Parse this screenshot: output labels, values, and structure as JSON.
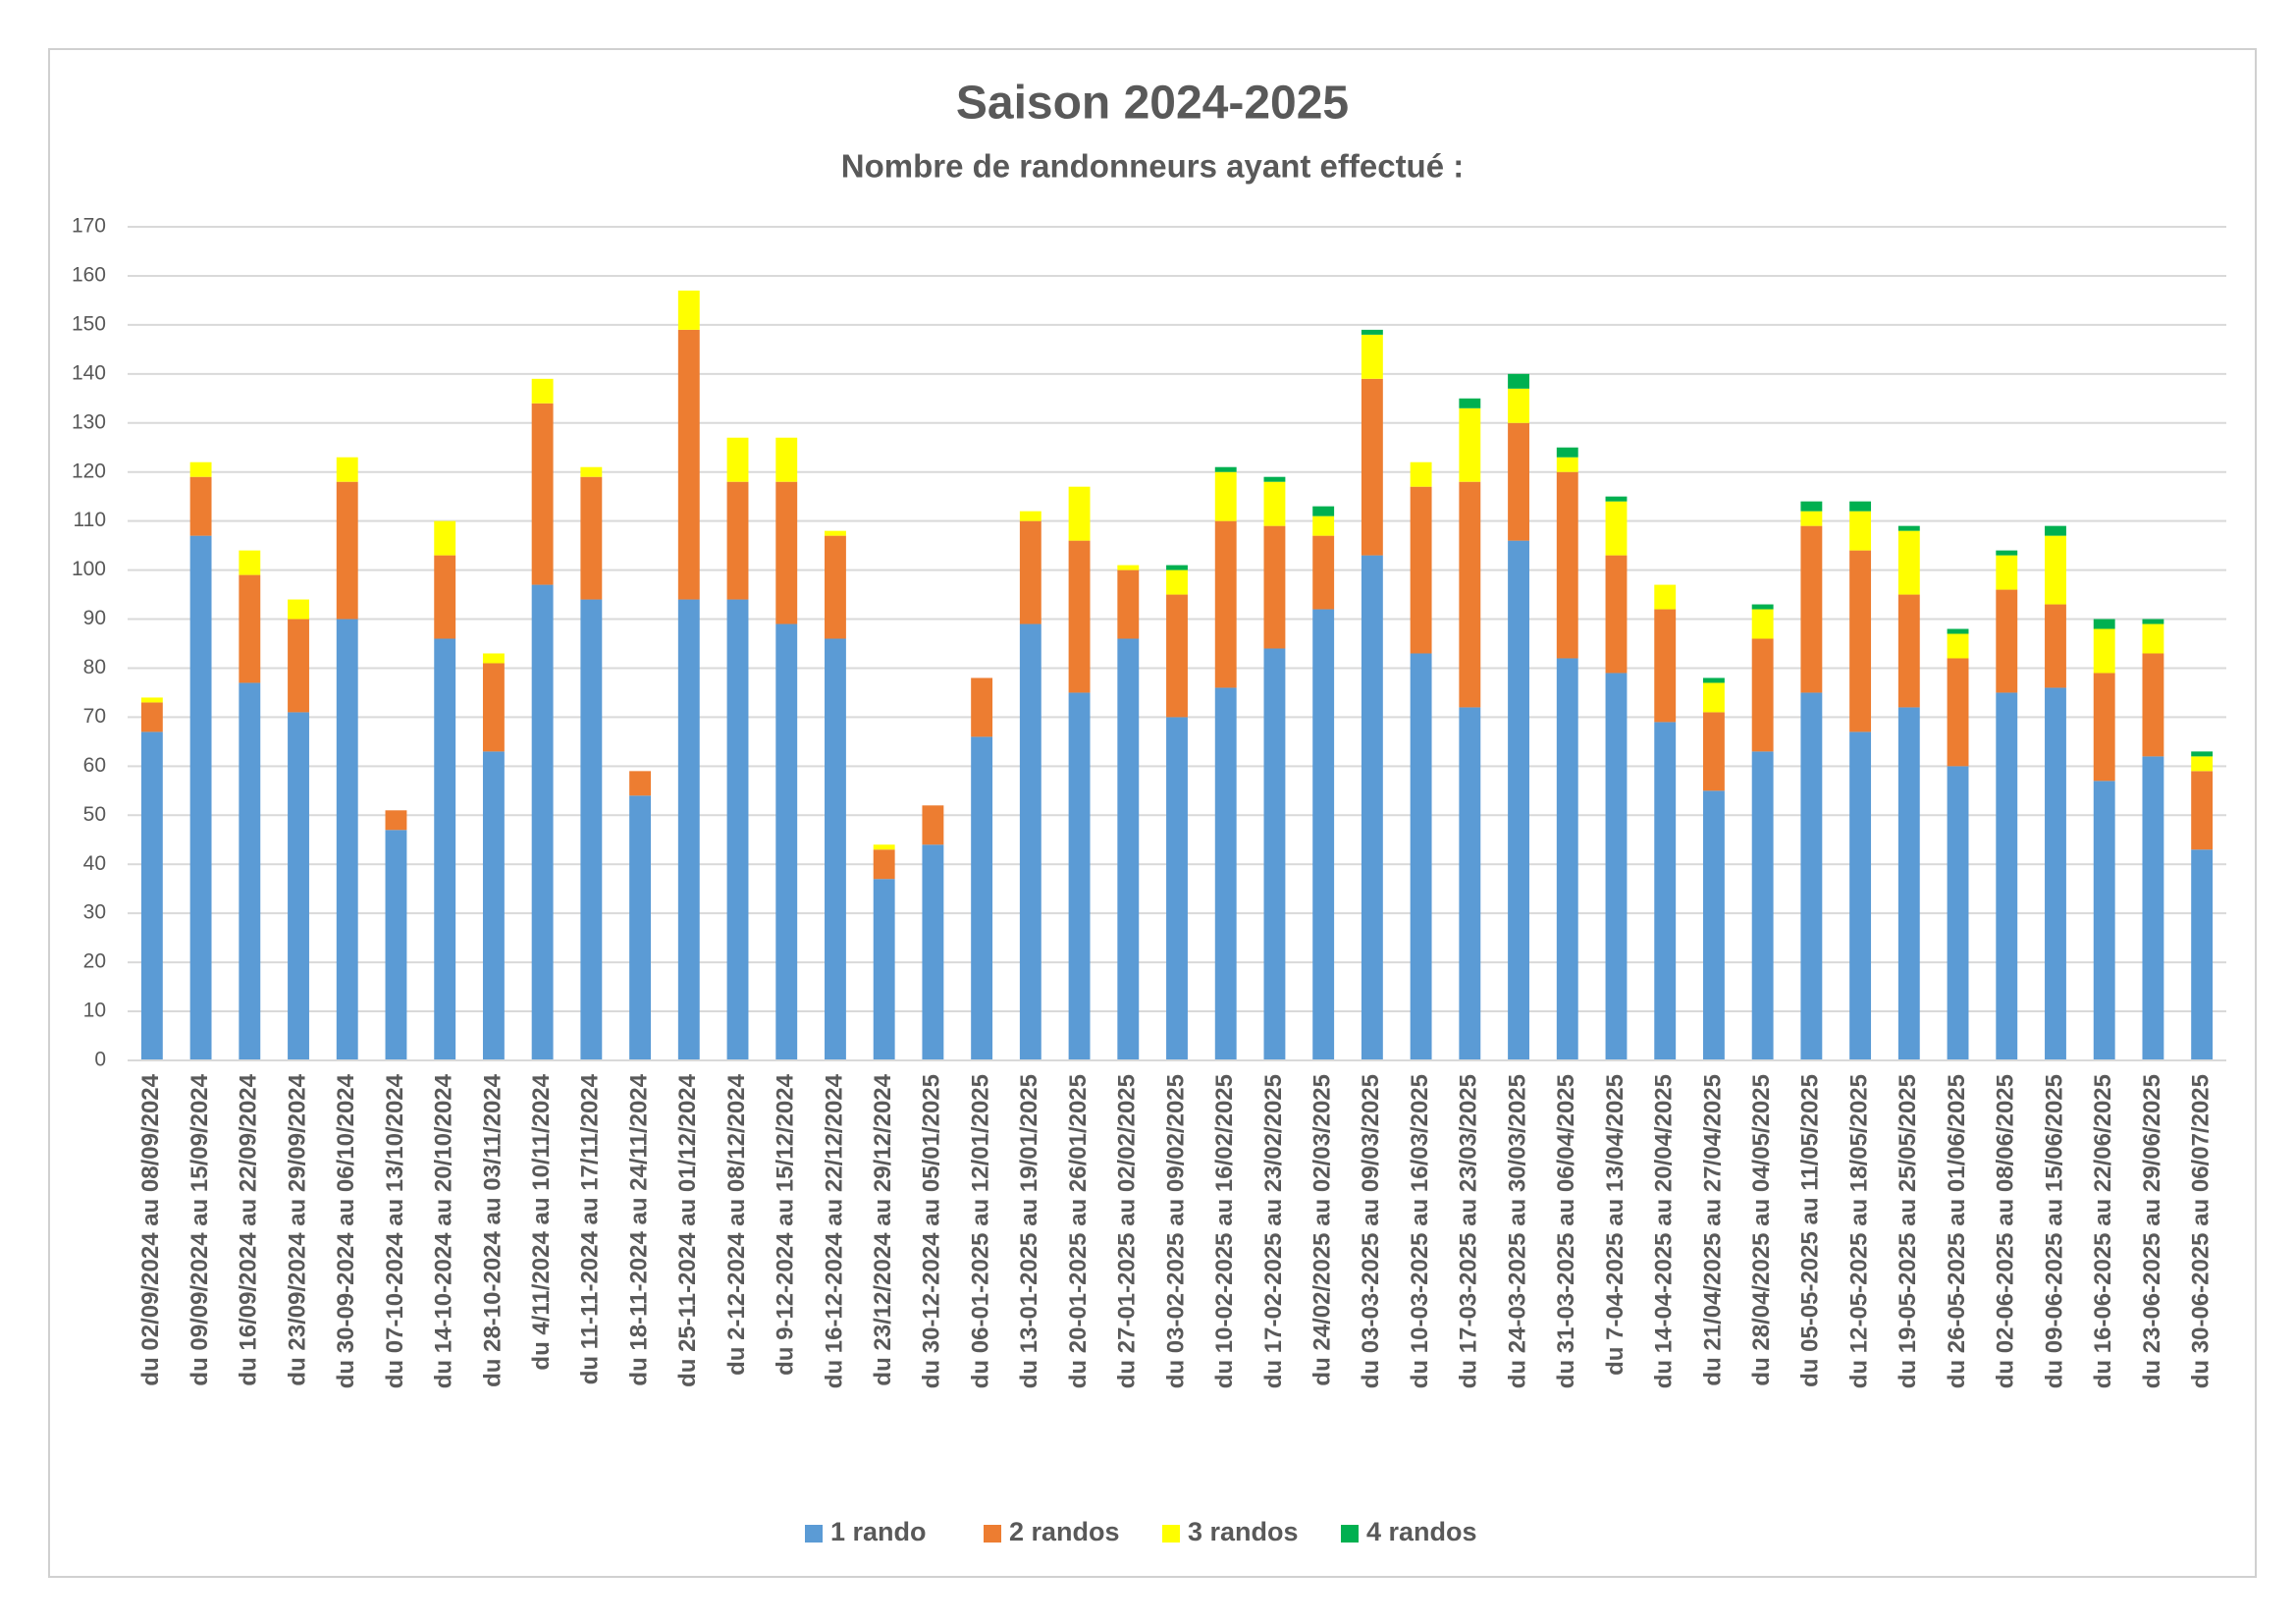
{
  "chart_data": {
    "type": "stacked_bar",
    "title": "Saison 2024-2025",
    "subtitle": "Nombre de randonneurs ayant effectué :",
    "categories": [
      "du 02/09/2024 au 08/09/2024",
      "du 09/09/2024 au 15/09/2024",
      "du 16/09/2024 au 22/09/2024",
      "du 23/09/2024 au 29/09/2024",
      "du 30-09-2024 au 06/10/2024",
      "du 07-10-2024 au 13/10/2024",
      "du 14-10-2024 au 20/10/2024",
      "du 28-10-2024 au 03/11/2024",
      "du 4/11/2024 au 10/11/2024",
      "du 11-11-2024 au 17/11/2024",
      "du 18-11-2024 au 24/11/2024",
      "du 25-11-2024 au 01/12/2024",
      "du 2-12-2024 au 08/12/2024",
      "du 9-12-2024 au 15/12/2024",
      "du 16-12-2024 au 22/12/2024",
      "du 23/12/2024 au 29/12/2024",
      "du 30-12-2024 au 05/01/2025",
      "du 06-01-2025 au 12/01/2025",
      "du 13-01-2025 au 19/01/2025",
      "du 20-01-2025 au 26/01/2025",
      "du 27-01-2025 au 02/02/2025",
      "du 03-02-2025 au 09/02/2025",
      "du 10-02-2025 au 16/02/2025",
      "du 17-02-2025 au 23/02/2025",
      "du 24/02/2025 au 02/03/2025",
      "du 03-03-2025 au 09/03/2025",
      "du 10-03-2025 au 16/03/2025",
      "du 17-03-2025 au 23/03/2025",
      "du 24-03-2025 au 30/03/2025",
      "du 31-03-2025 au 06/04/2025",
      "du 7-04-2025 au 13/04/2025",
      "du 14-04-2025 au 20/04/2025",
      "du 21/04/2025 au 27/04/2025",
      "du 28/04/2025 au 04/05/2025",
      "du 05-05-2025 au 11/05/2025",
      "du 12-05-2025 au 18/05/2025",
      "du 19-05-2025 au 25/05/2025",
      "du 26-05-2025 au 01/06/2025",
      "du 02-06-2025 au 08/06/2025",
      "du 09-06-2025 au 15/06/2025",
      "du 16-06-2025 au 22/06/2025",
      "du 23-06-2025 au 29/06/2025",
      "du 30-06-2025 au 06/07/2025"
    ],
    "series": [
      {
        "name": "1 rando",
        "color": "#5b9bd5",
        "values": [
          67,
          107,
          77,
          71,
          90,
          47,
          86,
          63,
          97,
          94,
          54,
          94,
          94,
          89,
          86,
          37,
          44,
          66,
          89,
          75,
          86,
          70,
          76,
          84,
          92,
          103,
          83,
          72,
          106,
          82,
          79,
          69,
          55,
          63,
          75,
          67,
          72,
          60,
          75,
          76,
          57,
          62,
          43
        ]
      },
      {
        "name": "2 randos",
        "color": "#ed7d31",
        "values": [
          6,
          12,
          22,
          19,
          28,
          4,
          17,
          18,
          37,
          25,
          5,
          55,
          24,
          29,
          21,
          6,
          8,
          12,
          21,
          31,
          14,
          25,
          34,
          25,
          15,
          36,
          34,
          46,
          24,
          38,
          24,
          23,
          16,
          23,
          34,
          37,
          23,
          22,
          21,
          17,
          22,
          21,
          16
        ]
      },
      {
        "name": "3 randos",
        "color": "#ffff00",
        "values": [
          1,
          3,
          5,
          4,
          5,
          0,
          7,
          2,
          5,
          2,
          0,
          8,
          9,
          9,
          1,
          1,
          0,
          0,
          2,
          11,
          1,
          5,
          10,
          9,
          4,
          9,
          5,
          15,
          7,
          3,
          11,
          5,
          6,
          6,
          3,
          8,
          13,
          5,
          7,
          14,
          9,
          6,
          3
        ]
      },
      {
        "name": "4 randos",
        "color": "#00b050",
        "values": [
          0,
          0,
          0,
          0,
          0,
          0,
          0,
          0,
          0,
          0,
          0,
          0,
          0,
          0,
          0,
          0,
          0,
          0,
          0,
          0,
          0,
          1,
          1,
          1,
          2,
          1,
          0,
          2,
          3,
          2,
          1,
          0,
          1,
          1,
          2,
          2,
          1,
          1,
          1,
          2,
          2,
          1,
          1
        ]
      }
    ],
    "ylim": [
      0,
      170
    ],
    "yticks": [
      0,
      10,
      20,
      30,
      40,
      50,
      60,
      70,
      80,
      90,
      100,
      110,
      120,
      130,
      140,
      150,
      160,
      170
    ],
    "grid": true,
    "legend": "bottom"
  }
}
